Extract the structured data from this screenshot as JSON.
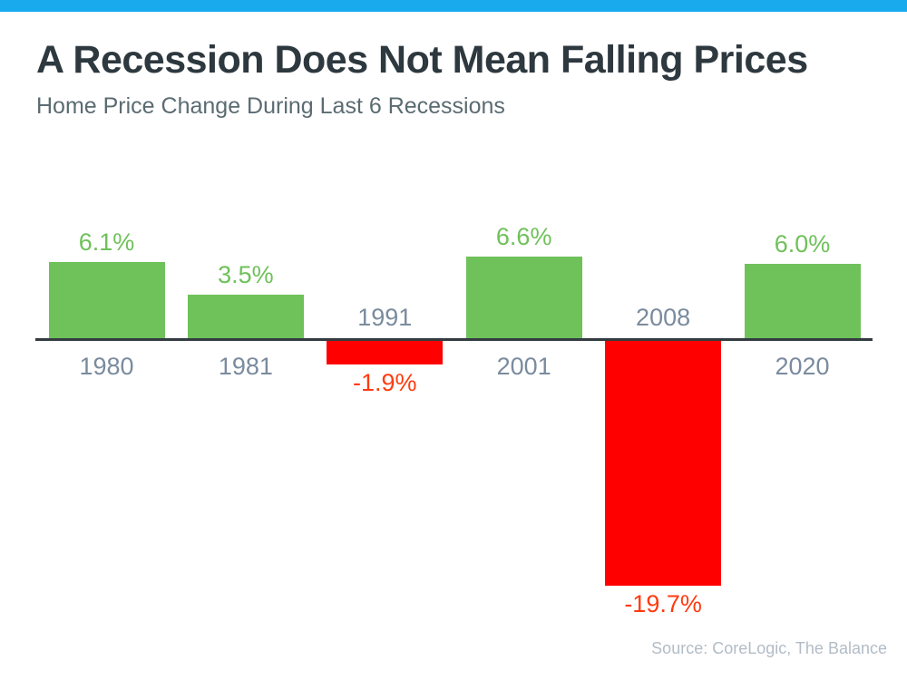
{
  "page": {
    "accent_bar_color": "#18aaec"
  },
  "header": {
    "title": "A Recession Does Not Mean Falling Prices",
    "subtitle": "Home Price Change During Last 6 Recessions"
  },
  "chart_data": {
    "type": "bar",
    "title": "A Recession Does Not Mean Falling Prices",
    "subtitle": "Home Price Change During Last 6 Recessions",
    "categories": [
      "1980",
      "1981",
      "1991",
      "2001",
      "2008",
      "2020"
    ],
    "values": [
      6.1,
      3.5,
      -1.9,
      6.6,
      -19.7,
      6.0
    ],
    "value_labels": [
      "6.1%",
      "3.5%",
      "-1.9%",
      "6.6%",
      "-19.7%",
      "6.0%"
    ],
    "xlabel": "",
    "ylabel": "",
    "ylim": [
      -22,
      8
    ],
    "grid": false,
    "legend": false,
    "baseline": 0,
    "colors": {
      "positive_bar": "#6fc15a",
      "negative_bar": "#fe0000",
      "positive_label": "#6fc15a",
      "negative_label": "#ff3b0f",
      "category_label": "#7a8b9e",
      "axis_line": "#333b41"
    }
  },
  "footer": {
    "source": "Source: CoreLogic, The Balance"
  }
}
